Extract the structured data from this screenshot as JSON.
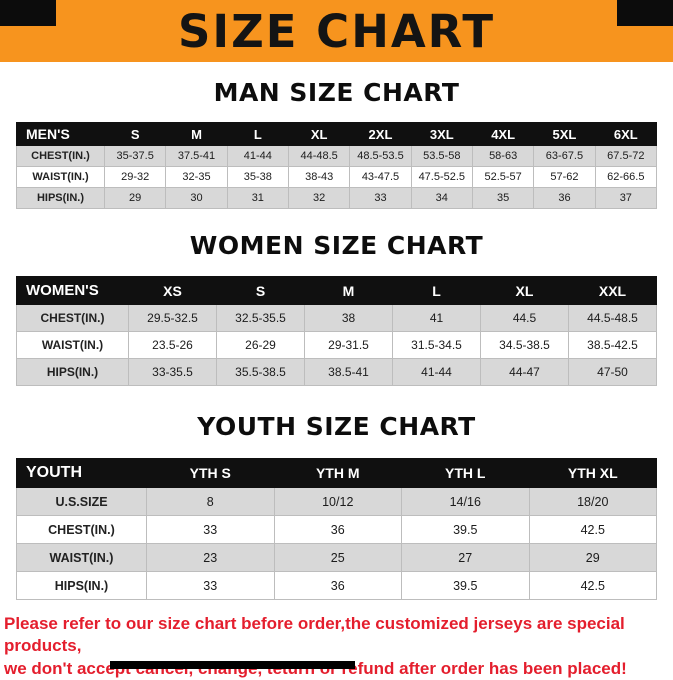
{
  "banner": {
    "title": "SIZE CHART",
    "bg_color": "#F7941E",
    "corner_color": "#0C0C0C"
  },
  "sections": [
    {
      "id": "men",
      "heading": "MAN SIZE CHART",
      "table": {
        "header": [
          "MEN'S",
          "S",
          "M",
          "L",
          "XL",
          "2XL",
          "3XL",
          "4XL",
          "5XL",
          "6XL"
        ],
        "rows": [
          [
            "CHEST(IN.)",
            "35-37.5",
            "37.5-41",
            "41-44",
            "44-48.5",
            "48.5-53.5",
            "53.5-58",
            "58-63",
            "63-67.5",
            "67.5-72"
          ],
          [
            "WAIST(IN.)",
            "29-32",
            "32-35",
            "35-38",
            "38-43",
            "43-47.5",
            "47.5-52.5",
            "52.5-57",
            "57-62",
            "62-66.5"
          ],
          [
            "HIPS(IN.)",
            "29",
            "30",
            "31",
            "32",
            "33",
            "34",
            "35",
            "36",
            "37"
          ]
        ]
      }
    },
    {
      "id": "women",
      "heading": "WOMEN SIZE CHART",
      "table": {
        "header": [
          "WOMEN'S",
          "XS",
          "S",
          "M",
          "L",
          "XL",
          "XXL"
        ],
        "rows": [
          [
            "CHEST(IN.)",
            "29.5-32.5",
            "32.5-35.5",
            "38",
            "41",
            "44.5",
            "44.5-48.5"
          ],
          [
            "WAIST(IN.)",
            "23.5-26",
            "26-29",
            "29-31.5",
            "31.5-34.5",
            "34.5-38.5",
            "38.5-42.5"
          ],
          [
            "HIPS(IN.)",
            "33-35.5",
            "35.5-38.5",
            "38.5-41",
            "41-44",
            "44-47",
            "47-50"
          ]
        ]
      }
    },
    {
      "id": "youth",
      "heading": "YOUTH SIZE CHART",
      "table": {
        "header": [
          "YOUTH",
          "YTH S",
          "YTH M",
          "YTH L",
          "YTH XL"
        ],
        "rows": [
          [
            "U.S.SIZE",
            "8",
            "10/12",
            "14/16",
            "18/20"
          ],
          [
            "CHEST(IN.)",
            "33",
            "36",
            "39.5",
            "42.5"
          ],
          [
            "WAIST(IN.)",
            "23",
            "25",
            "27",
            "29"
          ],
          [
            "HIPS(IN.)",
            "33",
            "36",
            "39.5",
            "42.5"
          ]
        ]
      }
    }
  ],
  "disclaimer": {
    "line1": "Please refer to our size chart before order,the customized jerseys are special products,",
    "line2": "we don't accept cancel, change, teturn or refund after order has been placed!",
    "color": "#E41E2D"
  },
  "row_shade_color": "#D8D8D8",
  "header_row_color": "#101010"
}
